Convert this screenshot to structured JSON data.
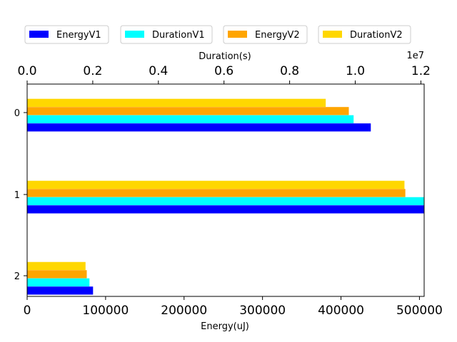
{
  "chart_data": {
    "type": "bar",
    "orientation": "horizontal",
    "categories": [
      "0",
      "1",
      "2"
    ],
    "series": [
      {
        "name": "EnergyV1",
        "color": "#0000ff",
        "axis": "bottom",
        "values": [
          438000,
          506000,
          84000
        ]
      },
      {
        "name": "DurationV1",
        "color": "#00ffff",
        "axis": "top",
        "values": [
          9950000,
          12100000,
          1900000
        ]
      },
      {
        "name": "EnergyV2",
        "color": "#ffa500",
        "axis": "bottom",
        "values": [
          410000,
          482000,
          76000
        ]
      },
      {
        "name": "DurationV2",
        "color": "#ffd700",
        "axis": "top",
        "values": [
          9100000,
          11500000,
          1780000
        ]
      }
    ],
    "xlabel_bottom": "Energy(uJ)",
    "xlim_bottom": [
      0,
      506000
    ],
    "xticks_bottom": [
      "0",
      "100000",
      "200000",
      "300000",
      "400000",
      "500000"
    ],
    "xlabel_top": "Duration(s)",
    "xlim_top": [
      0,
      12100000
    ],
    "xticks_top": [
      "0.0",
      "0.2",
      "0.4",
      "0.6",
      "0.8",
      "1.0",
      "1.2"
    ],
    "top_offset_text": "1e7",
    "grid": false,
    "legend_position": "top"
  }
}
